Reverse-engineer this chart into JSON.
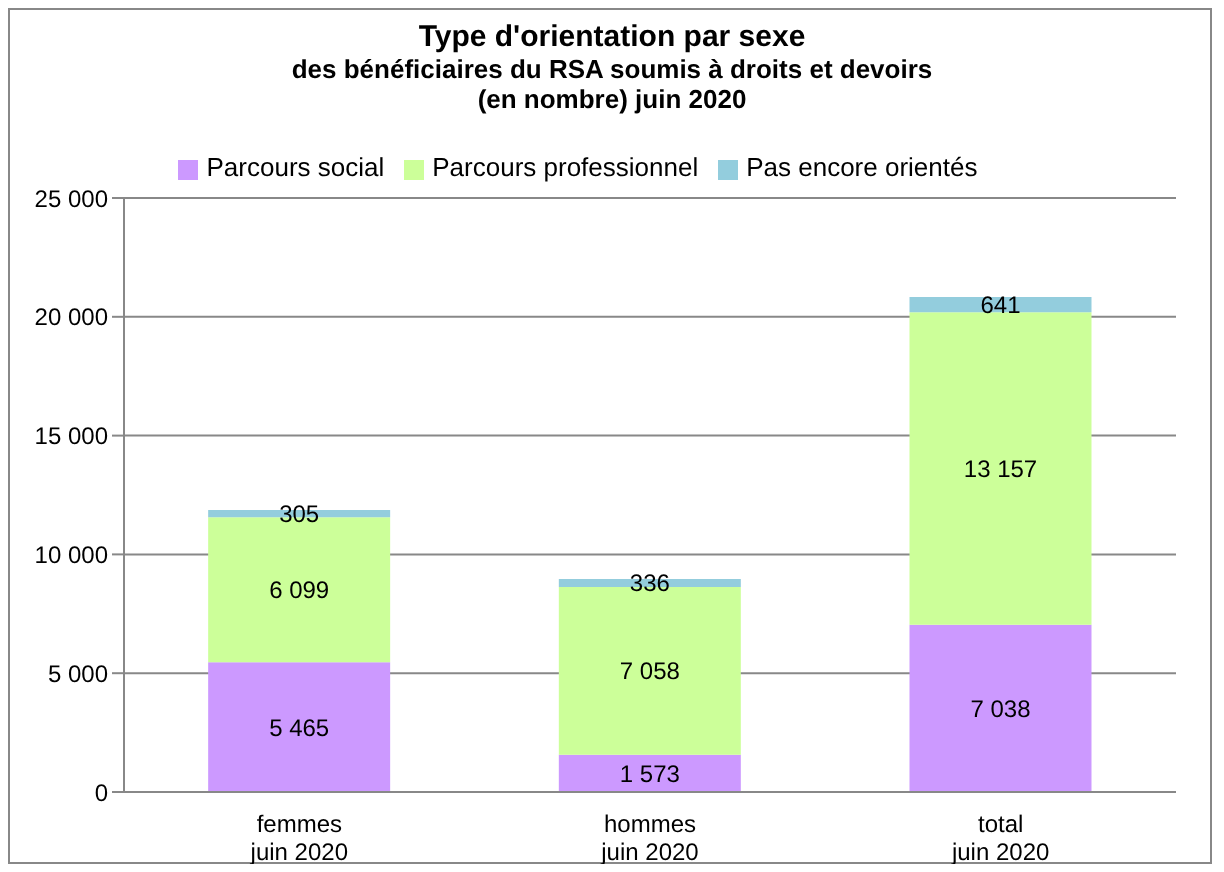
{
  "chart_data": {
    "type": "bar",
    "title": "Type d'orientation par sexe",
    "subtitle": "des bénéficiaires du RSA soumis à droits et devoirs (en nombre) juin 2020",
    "categories": [
      "femmes juin 2020",
      "hommes juin 2020",
      "total juin 2020"
    ],
    "stacked": true,
    "series": [
      {
        "name": "Parcours social",
        "color": "#cc99ff",
        "values": [
          5465,
          1573,
          7038
        ],
        "value_labels": [
          "5 465",
          "1 573",
          "7 038"
        ]
      },
      {
        "name": "Parcours professionnel",
        "color": "#ccff99",
        "values": [
          6099,
          7058,
          13157
        ],
        "value_labels": [
          "6 099",
          "7 058",
          "13 157"
        ]
      },
      {
        "name": "Pas encore orientés",
        "color": "#93cddd",
        "values": [
          305,
          336,
          641
        ],
        "value_labels": [
          "305",
          "336",
          "641"
        ]
      }
    ],
    "ylim": [
      0,
      25000
    ],
    "yticks": [
      {
        "value": 0,
        "label": "0"
      },
      {
        "value": 5000,
        "label": "5 000"
      },
      {
        "value": 10000,
        "label": "10 000"
      },
      {
        "value": 15000,
        "label": "15 000"
      },
      {
        "value": 20000,
        "label": "20 000"
      },
      {
        "value": 25000,
        "label": "25 000"
      }
    ],
    "grid": "y",
    "legend": "top"
  }
}
